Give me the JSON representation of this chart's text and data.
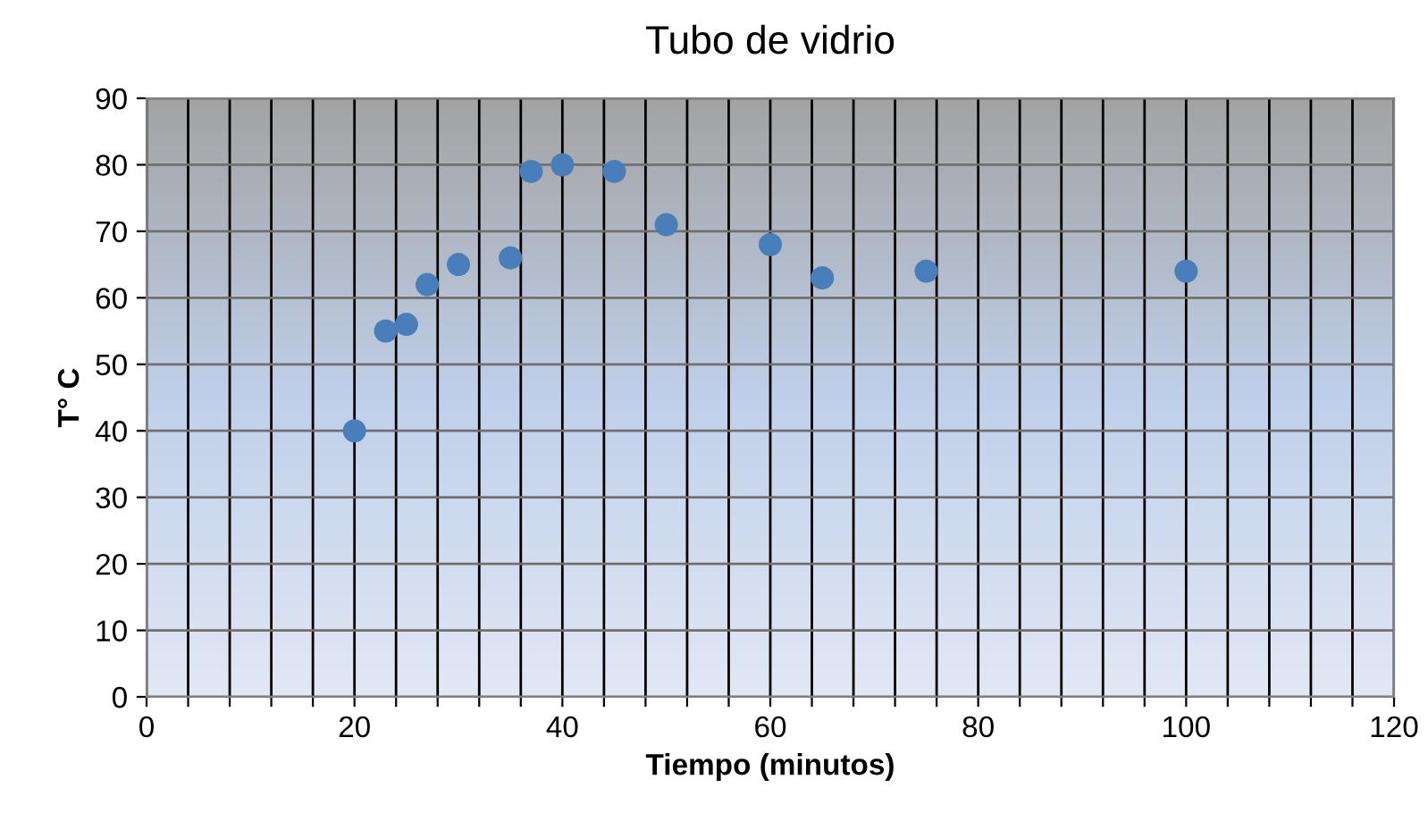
{
  "chart_data": {
    "type": "scatter",
    "title": "Tubo de vidrio",
    "xlabel": "Tiempo (minutos)",
    "ylabel": "T° C",
    "x": [
      20,
      23,
      25,
      27,
      30,
      35,
      37,
      40,
      45,
      50,
      60,
      65,
      75,
      100
    ],
    "series": [
      {
        "color": "#4a7ebb",
        "values": [
          40,
          55,
          56,
          62,
          65,
          66,
          79,
          80,
          79,
          71,
          68,
          63,
          64,
          64
        ]
      }
    ],
    "xlim": [
      0,
      120
    ],
    "xticks": [
      0,
      {
        "value": 4,
        "label": null
      },
      {
        "value": 8,
        "label": null
      },
      {
        "value": 12,
        "label": null
      },
      {
        "value": 16,
        "label": null
      },
      20,
      {
        "value": 24,
        "label": null
      },
      {
        "value": 28,
        "label": null
      },
      {
        "value": 32,
        "label": null
      },
      {
        "value": 36,
        "label": null
      },
      40,
      {
        "value": 44,
        "label": null
      },
      {
        "value": 48,
        "label": null
      },
      {
        "value": 52,
        "label": null
      },
      {
        "value": 56,
        "label": null
      },
      60,
      {
        "value": 64,
        "label": null
      },
      {
        "value": 68,
        "label": null
      },
      {
        "value": 72,
        "label": null
      },
      {
        "value": 76,
        "label": null
      },
      80,
      {
        "value": 84,
        "label": null
      },
      {
        "value": 88,
        "label": null
      },
      {
        "value": 92,
        "label": null
      },
      {
        "value": 96,
        "label": null
      },
      100,
      {
        "value": 104,
        "label": null
      },
      {
        "value": 108,
        "label": null
      },
      {
        "value": 112,
        "label": null
      },
      {
        "value": 116,
        "label": null
      },
      120
    ],
    "ylim": [
      0,
      90
    ],
    "yticks": [
      0,
      10,
      20,
      30,
      40,
      50,
      60,
      70,
      80,
      90
    ],
    "grid": true,
    "marker": "circle",
    "legend": false
  }
}
